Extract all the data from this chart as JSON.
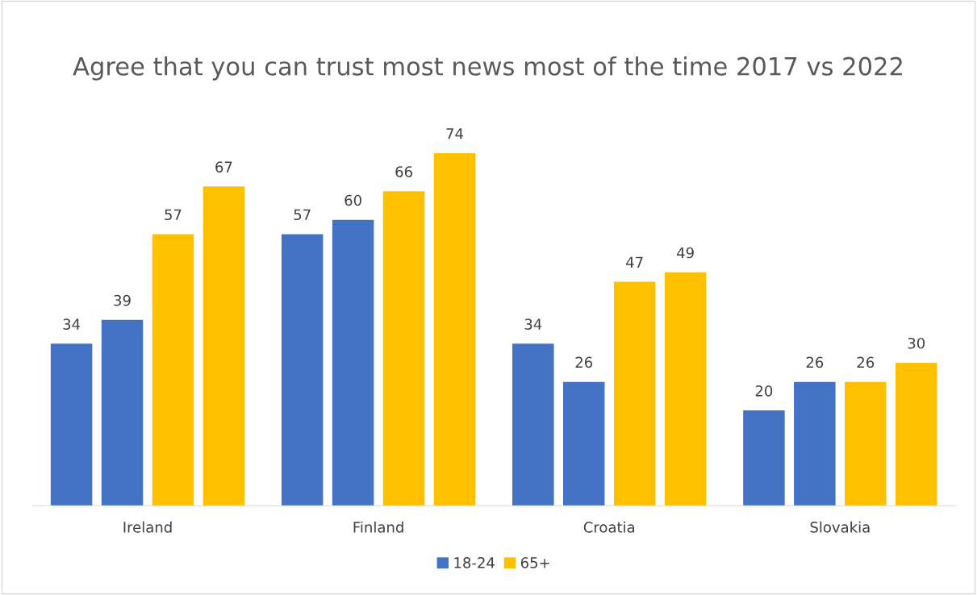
{
  "chart_data": {
    "type": "bar",
    "title": "Agree that you can trust most news most of the time 2017 vs 2022",
    "categories": [
      "Ireland",
      "Finland",
      "Croatia",
      "Slovakia"
    ],
    "series": [
      {
        "name": "18-24",
        "color": "#4472c4",
        "values": [
          34,
          57,
          34,
          20
        ]
      },
      {
        "color": "#4472c4",
        "values": [
          39,
          60,
          26,
          26
        ]
      },
      {
        "name": "65+",
        "color": "#ffc000",
        "values": [
          57,
          66,
          47,
          26
        ]
      },
      {
        "color": "#ffc000",
        "values": [
          67,
          74,
          49,
          30
        ]
      }
    ],
    "data_labels": true,
    "legend": "bottom",
    "grid": false,
    "tick_labels": "x"
  }
}
